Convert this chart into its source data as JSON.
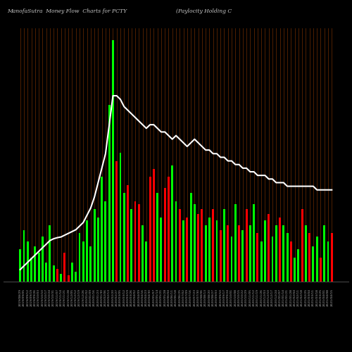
{
  "title_left": "ManofaSutra  Money Flow  Charts for PCTY",
  "title_right": "(Paylocity Holding C",
  "bg_color": "#000000",
  "bar_color_up": "#00ff00",
  "bar_color_down": "#ff0000",
  "grid_color": "#7B3000",
  "line_color": "#ffffff",
  "bar_values": [
    2.0,
    3.2,
    2.5,
    1.5,
    2.2,
    1.8,
    2.8,
    1.2,
    3.5,
    1.0,
    0.8,
    0.5,
    1.8,
    0.4,
    1.2,
    0.6,
    3.0,
    2.5,
    3.8,
    2.2,
    4.5,
    4.0,
    6.5,
    5.0,
    11.0,
    15.0,
    7.5,
    8.0,
    5.5,
    6.0,
    4.5,
    5.0,
    4.8,
    3.5,
    2.5,
    6.5,
    7.0,
    5.5,
    4.0,
    5.8,
    6.5,
    7.2,
    5.0,
    4.5,
    3.8,
    4.0,
    5.5,
    4.8,
    4.2,
    4.5,
    3.5,
    4.0,
    4.5,
    3.8,
    3.2,
    4.5,
    3.5,
    2.8,
    4.8,
    3.5,
    3.2,
    4.5,
    3.5,
    4.8,
    3.0,
    2.5,
    3.8,
    4.2,
    2.8,
    3.5,
    4.0,
    3.5,
    3.0,
    2.5,
    1.5,
    2.0,
    4.5,
    3.5,
    3.0,
    2.2,
    2.8,
    1.5,
    3.5,
    2.5,
    3.0
  ],
  "bar_colors_list": [
    "g",
    "g",
    "g",
    "g",
    "g",
    "g",
    "g",
    "g",
    "g",
    "g",
    "r",
    "g",
    "r",
    "r",
    "g",
    "g",
    "g",
    "g",
    "g",
    "g",
    "g",
    "g",
    "g",
    "g",
    "g",
    "g",
    "r",
    "g",
    "g",
    "r",
    "g",
    "r",
    "r",
    "g",
    "g",
    "r",
    "r",
    "g",
    "g",
    "r",
    "r",
    "g",
    "g",
    "r",
    "g",
    "r",
    "g",
    "g",
    "r",
    "r",
    "g",
    "g",
    "r",
    "g",
    "r",
    "g",
    "r",
    "g",
    "g",
    "r",
    "g",
    "r",
    "g",
    "g",
    "r",
    "g",
    "g",
    "r",
    "g",
    "g",
    "r",
    "g",
    "g",
    "r",
    "g",
    "g",
    "r",
    "g",
    "r",
    "g",
    "g",
    "r",
    "g",
    "g",
    "r"
  ],
  "line_values": [
    10,
    11,
    12,
    13,
    14,
    15,
    16,
    17,
    18,
    18.5,
    18.8,
    19,
    19.5,
    20,
    20.5,
    21,
    22,
    23,
    25,
    27,
    30,
    34,
    38,
    42,
    50,
    58,
    58,
    57,
    55,
    54,
    53,
    52,
    51,
    50,
    49,
    50,
    50,
    49,
    48,
    48,
    47,
    46,
    47,
    46,
    45,
    44,
    45,
    46,
    45,
    44,
    43,
    43,
    42,
    42,
    41,
    41,
    40,
    40,
    39,
    39,
    38,
    38,
    37,
    37,
    36,
    36,
    36,
    35,
    35,
    34,
    34,
    34,
    33,
    33,
    33,
    33,
    33,
    33,
    33,
    33,
    32,
    32,
    32,
    32,
    32
  ],
  "dates": [
    "2019/08/29",
    "2019/09/05",
    "2019/09/12",
    "2019/09/19",
    "2019/09/26",
    "2019/10/03",
    "2019/10/10",
    "2019/10/17",
    "2019/10/24",
    "2019/10/31",
    "2019/11/07",
    "2019/11/14",
    "2019/11/21",
    "2019/11/28",
    "2019/12/05",
    "2019/12/12",
    "2019/12/19",
    "2019/12/26",
    "2020/01/02",
    "2020/01/09",
    "2020/01/16",
    "2020/01/23",
    "2020/01/30",
    "2020/02/06",
    "2020/02/13",
    "2020/02/20",
    "2020/02/27",
    "2020/03/05",
    "2020/03/12",
    "2020/03/19",
    "2020/03/26",
    "2020/04/02",
    "2020/04/09",
    "2020/04/16",
    "2020/04/23",
    "2020/04/30",
    "2020/05/07",
    "2020/05/14",
    "2020/05/21",
    "2020/05/28",
    "2020/06/04",
    "2020/06/11",
    "2020/06/18",
    "2020/06/25",
    "2020/07/02",
    "2020/07/09",
    "2020/07/16",
    "2020/07/23",
    "2020/07/30",
    "2020/08/06",
    "2020/08/13",
    "2020/08/20",
    "2020/08/27",
    "2020/09/03",
    "2020/09/10",
    "2020/09/17",
    "2020/09/24",
    "2020/10/01",
    "2020/10/08",
    "2020/10/15",
    "2020/10/22",
    "2020/10/29",
    "2020/11/05",
    "2020/11/12",
    "2020/11/19",
    "2020/11/26",
    "2020/12/03",
    "2020/12/10",
    "2020/12/17",
    "2020/12/24",
    "2021/01/07",
    "2021/01/14",
    "2021/01/21",
    "2021/01/28",
    "2021/02/04",
    "2021/02/11",
    "2021/02/18",
    "2021/02/25",
    "2021/03/04",
    "2021/03/11",
    "2021/03/18",
    "2021/03/25",
    "2021/04/01",
    "2021/04/08",
    "2021/04/15"
  ],
  "figsize": [
    5.0,
    5.0
  ],
  "dpi": 100
}
